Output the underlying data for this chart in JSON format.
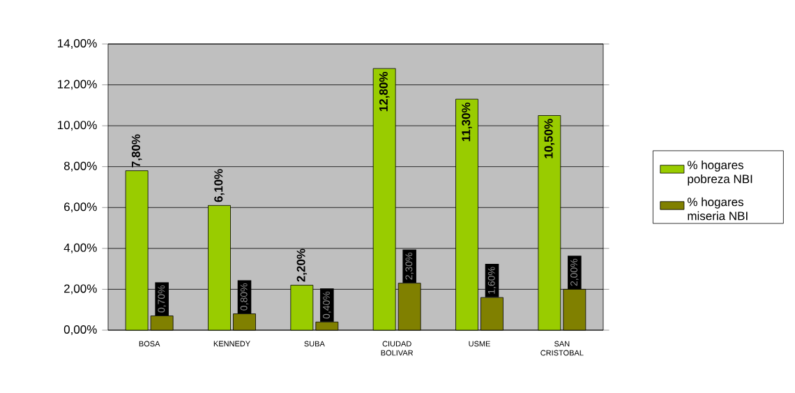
{
  "chart_data": {
    "type": "bar",
    "categories": [
      "BOSA",
      "KENNEDY",
      "SUBA",
      "CIUDAD BOLIVAR",
      "USME",
      "SAN CRISTOBAL"
    ],
    "series": [
      {
        "name": "% hogares pobreza NBI",
        "color": "#99cc00",
        "values": [
          7.8,
          6.1,
          2.2,
          12.8,
          11.3,
          10.5
        ],
        "value_labels": [
          "7,80%",
          "6,10%",
          "2,20%",
          "12,80%",
          "11,30%",
          "10,50%"
        ]
      },
      {
        "name": "% hogares miseria NBI",
        "color": "#808000",
        "values": [
          0.7,
          0.8,
          0.4,
          2.3,
          1.6,
          2.0
        ],
        "value_labels": [
          "0,70%",
          "0,80%",
          "0,40%",
          "2,30%",
          "1,60%",
          "2,00%"
        ]
      }
    ],
    "ylim": [
      0,
      14
    ],
    "yticks": [
      {
        "value": 0,
        "label": "0,00%"
      },
      {
        "value": 2,
        "label": "2,00%"
      },
      {
        "value": 4,
        "label": "4,00%"
      },
      {
        "value": 6,
        "label": "6,00%"
      },
      {
        "value": 8,
        "label": "8,00%"
      },
      {
        "value": 10,
        "label": "10,00%"
      },
      {
        "value": 12,
        "label": "12,00%"
      },
      {
        "value": 14,
        "label": "14,00%"
      }
    ],
    "grid": "y",
    "legend": "right"
  }
}
